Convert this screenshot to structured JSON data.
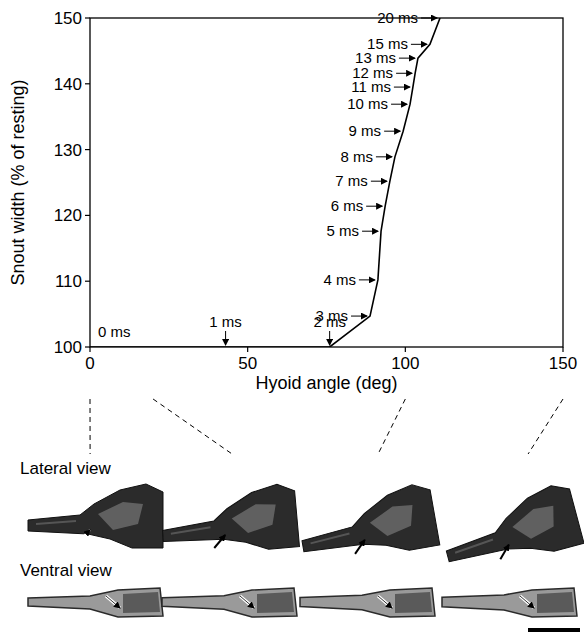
{
  "chart_data": {
    "type": "line",
    "x_label": "Hyoid angle (deg)",
    "y_label": "Snout width (% of resting)",
    "xlim": [
      0,
      150
    ],
    "ylim": [
      100,
      150
    ],
    "xticks": [
      0,
      50,
      100,
      150
    ],
    "yticks": [
      100,
      110,
      120,
      130,
      140,
      150
    ],
    "grid": false,
    "series": [
      {
        "color": "#000000",
        "line_style": "solid",
        "x": [
          0,
          43,
          76,
          88.8,
          91.3,
          92.3,
          93.6,
          95.1,
          96.7,
          99.3,
          101.5,
          102.4,
          103.1,
          104,
          107.8,
          111
        ],
        "values": [
          100,
          100,
          100,
          104.7,
          110.2,
          117.6,
          121.4,
          125.2,
          128.9,
          132.8,
          136.9,
          139.5,
          141.6,
          143.9,
          146,
          150
        ],
        "time_labels": [
          "0 ms",
          "1 ms",
          "2 ms",
          "3 ms",
          "4 ms",
          "5 ms",
          "6 ms",
          "7 ms",
          "8 ms",
          "9 ms",
          "10 ms",
          "11 ms",
          "12 ms",
          "13 ms",
          "15 ms",
          "20 ms"
        ]
      }
    ],
    "frames": {
      "hyoid_angles": [
        0,
        20,
        100,
        150
      ],
      "row_labels": [
        "Lateral view",
        "Ventral view"
      ]
    }
  }
}
